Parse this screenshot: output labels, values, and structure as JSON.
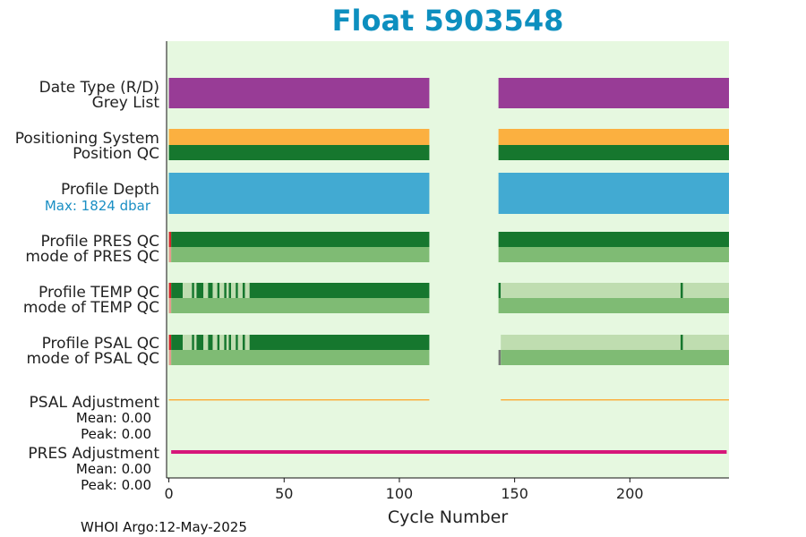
{
  "chart_data": {
    "type": "bar",
    "title": "Float 5903548",
    "xlabel": "Cycle Number",
    "xlim": [
      -1,
      243
    ],
    "xticks": [
      0,
      50,
      100,
      150,
      200
    ],
    "gap": [
      113,
      143
    ],
    "rows": [
      {
        "key": "date_type",
        "label": "Date Type (R/D)"
      },
      {
        "key": "grey_list",
        "label": "Grey List"
      },
      {
        "key": "pos_sys",
        "label": "Positioning System"
      },
      {
        "key": "pos_qc",
        "label": "Position QC"
      },
      {
        "key": "depth",
        "label": "Profile Depth",
        "sub": "Max: 1824 dbar"
      },
      {
        "key": "pres_qc",
        "label": "Profile PRES QC"
      },
      {
        "key": "pres_mode",
        "label": "mode of PRES QC"
      },
      {
        "key": "temp_qc",
        "label": "Profile TEMP QC"
      },
      {
        "key": "temp_mode",
        "label": "mode of TEMP QC"
      },
      {
        "key": "psal_qc",
        "label": "Profile PSAL QC"
      },
      {
        "key": "psal_mode",
        "label": "mode of PSAL QC"
      },
      {
        "key": "psal_adj",
        "label": "PSAL Adjustment",
        "mean": "Mean: 0.00",
        "peak": "Peak: 0.00"
      },
      {
        "key": "pres_adj",
        "label": "PRES Adjustment",
        "mean": "Mean: 0.00",
        "peak": "Peak: 0.00"
      }
    ],
    "segments": {
      "date_type": [
        {
          "x0": 0,
          "x1": 113,
          "color": "#983c96"
        },
        {
          "x0": 143,
          "x1": 243,
          "color": "#983c96"
        }
      ],
      "pos_sys": [
        {
          "x0": 0,
          "x1": 113,
          "color": "#fbb040"
        },
        {
          "x0": 143,
          "x1": 243,
          "color": "#fbb040"
        }
      ],
      "pos_qc": [
        {
          "x0": 0,
          "x1": 113,
          "color": "#16772e"
        },
        {
          "x0": 143,
          "x1": 243,
          "color": "#16772e"
        }
      ],
      "depth": [
        {
          "x0": 0,
          "x1": 113,
          "color": "#42aad2"
        },
        {
          "x0": 143,
          "x1": 243,
          "color": "#42aad2"
        }
      ],
      "pres_qc": [
        {
          "x0": 0,
          "x1": 1,
          "color": "#d7262c"
        },
        {
          "x0": 1,
          "x1": 113,
          "color": "#16772e"
        },
        {
          "x0": 143,
          "x1": 243,
          "color": "#16772e"
        }
      ],
      "pres_mode": [
        {
          "x0": 0,
          "x1": 1,
          "color": "#e79a8e"
        },
        {
          "x0": 1,
          "x1": 113,
          "color": "#7fbb74"
        },
        {
          "x0": 143,
          "x1": 243,
          "color": "#7fbb74"
        }
      ],
      "temp_qc": [
        {
          "x0": 0,
          "x1": 1,
          "color": "#d7262c"
        },
        {
          "x0": 1,
          "x1": 6,
          "color": "#16772e"
        },
        {
          "x0": 6,
          "x1": 10,
          "color": "#bfddb0"
        },
        {
          "x0": 10,
          "x1": 11,
          "color": "#16772e"
        },
        {
          "x0": 11,
          "x1": 12,
          "color": "#bfddb0"
        },
        {
          "x0": 12,
          "x1": 15,
          "color": "#16772e"
        },
        {
          "x0": 15,
          "x1": 17,
          "color": "#bfddb0"
        },
        {
          "x0": 17,
          "x1": 19,
          "color": "#16772e"
        },
        {
          "x0": 19,
          "x1": 21,
          "color": "#bfddb0"
        },
        {
          "x0": 21,
          "x1": 22,
          "color": "#16772e"
        },
        {
          "x0": 22,
          "x1": 24,
          "color": "#bfddb0"
        },
        {
          "x0": 24,
          "x1": 25,
          "color": "#16772e"
        },
        {
          "x0": 25,
          "x1": 26,
          "color": "#bfddb0"
        },
        {
          "x0": 26,
          "x1": 27,
          "color": "#16772e"
        },
        {
          "x0": 27,
          "x1": 29,
          "color": "#bfddb0"
        },
        {
          "x0": 29,
          "x1": 30,
          "color": "#16772e"
        },
        {
          "x0": 30,
          "x1": 32,
          "color": "#bfddb0"
        },
        {
          "x0": 32,
          "x1": 33,
          "color": "#16772e"
        },
        {
          "x0": 33,
          "x1": 35,
          "color": "#bfddb0"
        },
        {
          "x0": 35,
          "x1": 113,
          "color": "#16772e"
        },
        {
          "x0": 143,
          "x1": 144,
          "color": "#16772e"
        },
        {
          "x0": 144,
          "x1": 222,
          "color": "#bfddb0"
        },
        {
          "x0": 222,
          "x1": 223,
          "color": "#16772e"
        },
        {
          "x0": 223,
          "x1": 243,
          "color": "#bfddb0"
        }
      ],
      "temp_mode": [
        {
          "x0": 0,
          "x1": 1,
          "color": "#e79a8e"
        },
        {
          "x0": 1,
          "x1": 113,
          "color": "#7fbb74"
        },
        {
          "x0": 143,
          "x1": 243,
          "color": "#7fbb74"
        }
      ],
      "psal_qc": [
        {
          "x0": 0,
          "x1": 1,
          "color": "#d7262c"
        },
        {
          "x0": 1,
          "x1": 6,
          "color": "#16772e"
        },
        {
          "x0": 6,
          "x1": 10,
          "color": "#bfddb0"
        },
        {
          "x0": 10,
          "x1": 11,
          "color": "#16772e"
        },
        {
          "x0": 11,
          "x1": 12,
          "color": "#bfddb0"
        },
        {
          "x0": 12,
          "x1": 15,
          "color": "#16772e"
        },
        {
          "x0": 15,
          "x1": 17,
          "color": "#bfddb0"
        },
        {
          "x0": 17,
          "x1": 19,
          "color": "#16772e"
        },
        {
          "x0": 19,
          "x1": 21,
          "color": "#bfddb0"
        },
        {
          "x0": 21,
          "x1": 22,
          "color": "#16772e"
        },
        {
          "x0": 22,
          "x1": 24,
          "color": "#bfddb0"
        },
        {
          "x0": 24,
          "x1": 25,
          "color": "#16772e"
        },
        {
          "x0": 25,
          "x1": 26,
          "color": "#bfddb0"
        },
        {
          "x0": 26,
          "x1": 27,
          "color": "#16772e"
        },
        {
          "x0": 27,
          "x1": 29,
          "color": "#bfddb0"
        },
        {
          "x0": 29,
          "x1": 30,
          "color": "#16772e"
        },
        {
          "x0": 30,
          "x1": 32,
          "color": "#bfddb0"
        },
        {
          "x0": 32,
          "x1": 33,
          "color": "#16772e"
        },
        {
          "x0": 33,
          "x1": 35,
          "color": "#bfddb0"
        },
        {
          "x0": 35,
          "x1": 113,
          "color": "#16772e"
        },
        {
          "x0": 144,
          "x1": 222,
          "color": "#bfddb0"
        },
        {
          "x0": 222,
          "x1": 223,
          "color": "#16772e"
        },
        {
          "x0": 223,
          "x1": 243,
          "color": "#bfddb0"
        }
      ],
      "psal_mode": [
        {
          "x0": 0,
          "x1": 1,
          "color": "#e79a8e"
        },
        {
          "x0": 1,
          "x1": 113,
          "color": "#7fbb74"
        },
        {
          "x0": 143,
          "x1": 144,
          "color": "#777777"
        },
        {
          "x0": 144,
          "x1": 243,
          "color": "#7fbb74"
        }
      ],
      "psal_adj": [
        {
          "x0": 0,
          "x1": 113,
          "color": "#fbb040"
        },
        {
          "x0": 144,
          "x1": 243,
          "color": "#fbb040"
        }
      ],
      "pres_adj": [
        {
          "x0": 1,
          "x1": 242,
          "color": "#d6177a"
        }
      ]
    },
    "colors": {
      "background": "#e6f8e0",
      "title": "#0d8fbf"
    },
    "footer": "WHOI Argo:12-May-2025"
  }
}
